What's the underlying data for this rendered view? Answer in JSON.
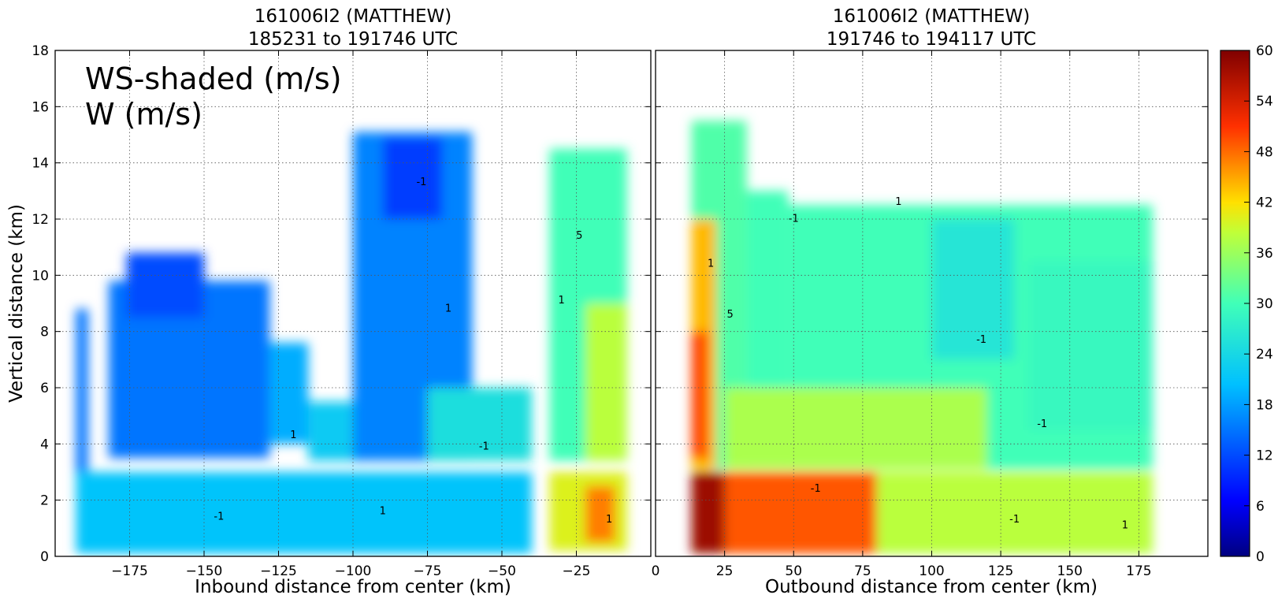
{
  "chart_data": [
    {
      "type": "heatmap",
      "title": "161006I2 (MATTHEW)",
      "subtitle": "185231 to 191746 UTC",
      "xlabel": "Inbound distance from center (km)",
      "ylabel": "Vertical distance (km)",
      "xlim": [
        -200,
        0
      ],
      "ylim": [
        0,
        18
      ],
      "x_ticks": [
        "−175",
        "−150",
        "−125",
        "−100",
        "−75",
        "−50",
        "−25"
      ],
      "x_tick_values": [
        -175,
        -150,
        -125,
        -100,
        -75,
        -50,
        -25
      ],
      "y_ticks": [
        "0",
        "2",
        "4",
        "6",
        "8",
        "10",
        "12",
        "14",
        "16",
        "18"
      ],
      "y_tick_values": [
        0,
        2,
        4,
        6,
        8,
        10,
        12,
        14,
        16,
        18
      ],
      "grid": true,
      "annotations": [
        "WS-shaded (m/s)",
        "W (m/s)"
      ],
      "contour_labels": [
        {
          "text": "-1",
          "x": -77,
          "y": 13.2
        },
        {
          "text": "1",
          "x": -68,
          "y": 8.7
        },
        {
          "text": "-1",
          "x": -56,
          "y": 3.8
        },
        {
          "text": "1",
          "x": -90,
          "y": 1.5
        },
        {
          "text": "-1",
          "x": -145,
          "y": 1.3
        },
        {
          "text": "1",
          "x": -120,
          "y": 4.2
        },
        {
          "text": "1",
          "x": -30,
          "y": 9.0
        },
        {
          "text": "5",
          "x": -24,
          "y": 11.3
        },
        {
          "text": "1",
          "x": -14,
          "y": 1.2
        }
      ],
      "wind_speed_regions": [
        {
          "x": [
            -193,
            -189
          ],
          "y": [
            2.1,
            8.8
          ],
          "ws": 15
        },
        {
          "x": [
            -182,
            -128
          ],
          "y": [
            3.5,
            9.8
          ],
          "ws": 15
        },
        {
          "x": [
            -176,
            -150
          ],
          "y": [
            8.5,
            10.8
          ],
          "ws": 12
        },
        {
          "x": [
            -128,
            -115
          ],
          "y": [
            4.0,
            7.6
          ],
          "ws": 19
        },
        {
          "x": [
            -115,
            -95
          ],
          "y": [
            3.4,
            5.5
          ],
          "ws": 22
        },
        {
          "x": [
            -100,
            -60
          ],
          "y": [
            3.4,
            15.1
          ],
          "ws": 16
        },
        {
          "x": [
            -90,
            -70
          ],
          "y": [
            12.0,
            14.9
          ],
          "ws": 11
        },
        {
          "x": [
            -75,
            -40
          ],
          "y": [
            3.4,
            6.0
          ],
          "ws": 25
        },
        {
          "x": [
            -34,
            -8
          ],
          "y": [
            3.4,
            14.5
          ],
          "ws": 30
        },
        {
          "x": [
            -22,
            -8
          ],
          "y": [
            3.4,
            9.0
          ],
          "ws": 38
        },
        {
          "x": [
            -193,
            -40
          ],
          "y": [
            0.1,
            3.0
          ],
          "ws": 21
        },
        {
          "x": [
            -34,
            -8
          ],
          "y": [
            0.2,
            3.0
          ],
          "ws": 40
        },
        {
          "x": [
            -22,
            -12
          ],
          "y": [
            0.5,
            2.5
          ],
          "ws": 47
        }
      ]
    },
    {
      "type": "heatmap",
      "title": "161006I2 (MATTHEW)",
      "subtitle": "191746 to 194117 UTC",
      "xlabel": "Outbound distance from center (km)",
      "xlim": [
        0,
        200
      ],
      "ylim": [
        0,
        18
      ],
      "x_ticks": [
        "0",
        "25",
        "50",
        "75",
        "100",
        "125",
        "150",
        "175"
      ],
      "x_tick_values": [
        0,
        25,
        50,
        75,
        100,
        125,
        150,
        175
      ],
      "grid": true,
      "contour_labels": [
        {
          "text": "-1",
          "x": 50,
          "y": 11.9
        },
        {
          "text": "1",
          "x": 88,
          "y": 12.5
        },
        {
          "text": "-1",
          "x": 118,
          "y": 7.6
        },
        {
          "text": "-1",
          "x": 140,
          "y": 4.6
        },
        {
          "text": "1",
          "x": 20,
          "y": 10.3
        },
        {
          "text": "5",
          "x": 27,
          "y": 8.5
        },
        {
          "text": "-1",
          "x": 58,
          "y": 2.3
        },
        {
          "text": "-1",
          "x": 130,
          "y": 1.2
        },
        {
          "text": "1",
          "x": 170,
          "y": 1.0
        }
      ],
      "wind_speed_regions": [
        {
          "x": [
            13,
            33
          ],
          "y": [
            3.1,
            15.5
          ],
          "ws": 31
        },
        {
          "x": [
            13,
            22
          ],
          "y": [
            3.1,
            12.0
          ],
          "ws": 44
        },
        {
          "x": [
            13,
            19
          ],
          "y": [
            3.5,
            8.0
          ],
          "ws": 50
        },
        {
          "x": [
            33,
            48
          ],
          "y": [
            4.5,
            13.0
          ],
          "ws": 30
        },
        {
          "x": [
            48,
            180
          ],
          "y": [
            3.1,
            12.5
          ],
          "ws": 30
        },
        {
          "x": [
            100,
            130
          ],
          "y": [
            7.0,
            12.0
          ],
          "ws": 26
        },
        {
          "x": [
            135,
            180
          ],
          "y": [
            4.5,
            10.5
          ],
          "ws": 29
        },
        {
          "x": [
            25,
            120
          ],
          "y": [
            3.1,
            6.0
          ],
          "ws": 37
        },
        {
          "x": [
            13,
            180
          ],
          "y": [
            0.1,
            3.0
          ],
          "ws": 38
        },
        {
          "x": [
            13,
            80
          ],
          "y": [
            0.1,
            3.0
          ],
          "ws": 49
        },
        {
          "x": [
            13,
            25
          ],
          "y": [
            0.1,
            3.0
          ],
          "ws": 58
        }
      ]
    }
  ],
  "colorbar": {
    "min": 0,
    "max": 60,
    "ticks": [
      "0",
      "6",
      "12",
      "18",
      "24",
      "30",
      "36",
      "42",
      "48",
      "54",
      "60"
    ],
    "tick_values": [
      0,
      6,
      12,
      18,
      24,
      30,
      36,
      42,
      48,
      54,
      60
    ],
    "colormap": "jet"
  }
}
